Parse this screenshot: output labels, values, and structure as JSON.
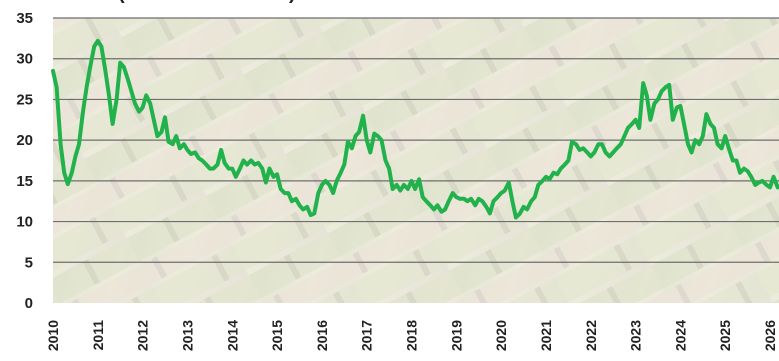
{
  "chart_data": {
    "type": "line",
    "title_fragment": "(",
    "title_fragment_2": ")",
    "ylim": [
      0,
      35
    ],
    "yticks": [
      "0",
      "5",
      "10",
      "15",
      "20",
      "25",
      "30",
      "35"
    ],
    "xticks": [
      "2010",
      "2011",
      "2012",
      "2013",
      "2014",
      "2015",
      "2016",
      "2017",
      "2018",
      "2019",
      "2020",
      "2021",
      "2022",
      "2023",
      "2024",
      "2025",
      "2026"
    ],
    "grid": true,
    "line_color": "#22b24c",
    "series": [
      {
        "points": [
          [
            2010.0,
            28.5
          ],
          [
            2010.08,
            26.5
          ],
          [
            2010.17,
            19.5
          ],
          [
            2010.25,
            16.0
          ],
          [
            2010.33,
            14.6
          ],
          [
            2010.42,
            16.0
          ],
          [
            2010.5,
            18.0
          ],
          [
            2010.58,
            19.5
          ],
          [
            2010.67,
            23.5
          ],
          [
            2010.75,
            26.5
          ],
          [
            2010.83,
            29.0
          ],
          [
            2010.92,
            31.5
          ],
          [
            2011.0,
            32.2
          ],
          [
            2011.08,
            31.5
          ],
          [
            2011.17,
            28.5
          ],
          [
            2011.25,
            25.5
          ],
          [
            2011.33,
            22.0
          ],
          [
            2011.42,
            25.0
          ],
          [
            2011.5,
            29.5
          ],
          [
            2011.58,
            29.0
          ],
          [
            2011.67,
            27.5
          ],
          [
            2011.75,
            26.0
          ],
          [
            2011.83,
            24.5
          ],
          [
            2011.92,
            23.5
          ],
          [
            2012.0,
            24.0
          ],
          [
            2012.08,
            25.5
          ],
          [
            2012.17,
            24.5
          ],
          [
            2012.25,
            22.5
          ],
          [
            2012.33,
            20.5
          ],
          [
            2012.42,
            21.0
          ],
          [
            2012.5,
            22.8
          ],
          [
            2012.58,
            19.8
          ],
          [
            2012.67,
            19.5
          ],
          [
            2012.75,
            20.5
          ],
          [
            2012.83,
            19.0
          ],
          [
            2012.92,
            19.5
          ],
          [
            2013.0,
            18.8
          ],
          [
            2013.08,
            18.3
          ],
          [
            2013.17,
            18.5
          ],
          [
            2013.25,
            17.8
          ],
          [
            2013.33,
            17.5
          ],
          [
            2013.42,
            17.0
          ],
          [
            2013.5,
            16.5
          ],
          [
            2013.58,
            16.5
          ],
          [
            2013.67,
            17.0
          ],
          [
            2013.75,
            18.8
          ],
          [
            2013.83,
            17.2
          ],
          [
            2013.92,
            16.5
          ],
          [
            2014.0,
            16.5
          ],
          [
            2014.08,
            15.5
          ],
          [
            2014.17,
            16.5
          ],
          [
            2014.25,
            17.5
          ],
          [
            2014.33,
            17.0
          ],
          [
            2014.42,
            17.5
          ],
          [
            2014.5,
            17.0
          ],
          [
            2014.58,
            17.2
          ],
          [
            2014.67,
            16.5
          ],
          [
            2014.75,
            14.8
          ],
          [
            2014.83,
            16.5
          ],
          [
            2014.92,
            15.5
          ],
          [
            2015.0,
            15.8
          ],
          [
            2015.08,
            14.0
          ],
          [
            2015.17,
            13.5
          ],
          [
            2015.25,
            13.5
          ],
          [
            2015.33,
            12.5
          ],
          [
            2015.42,
            12.8
          ],
          [
            2015.5,
            12.0
          ],
          [
            2015.58,
            11.5
          ],
          [
            2015.67,
            11.8
          ],
          [
            2015.75,
            10.8
          ],
          [
            2015.83,
            11.0
          ],
          [
            2015.92,
            13.5
          ],
          [
            2016.0,
            14.5
          ],
          [
            2016.08,
            15.0
          ],
          [
            2016.17,
            14.5
          ],
          [
            2016.25,
            13.5
          ],
          [
            2016.33,
            15.0
          ],
          [
            2016.42,
            16.0
          ],
          [
            2016.5,
            17.0
          ],
          [
            2016.58,
            19.8
          ],
          [
            2016.67,
            19.0
          ],
          [
            2016.75,
            20.5
          ],
          [
            2016.83,
            21.0
          ],
          [
            2016.92,
            23.0
          ],
          [
            2017.0,
            20.0
          ],
          [
            2017.08,
            18.5
          ],
          [
            2017.17,
            20.8
          ],
          [
            2017.25,
            20.5
          ],
          [
            2017.33,
            20.0
          ],
          [
            2017.42,
            17.5
          ],
          [
            2017.5,
            16.5
          ],
          [
            2017.58,
            14.0
          ],
          [
            2017.67,
            14.5
          ],
          [
            2017.75,
            13.8
          ],
          [
            2017.83,
            14.5
          ],
          [
            2017.92,
            14.0
          ],
          [
            2018.0,
            15.0
          ],
          [
            2018.08,
            14.0
          ],
          [
            2018.17,
            15.2
          ],
          [
            2018.25,
            13.0
          ],
          [
            2018.33,
            12.5
          ],
          [
            2018.42,
            12.0
          ],
          [
            2018.5,
            11.5
          ],
          [
            2018.58,
            12.0
          ],
          [
            2018.67,
            11.2
          ],
          [
            2018.75,
            11.5
          ],
          [
            2018.83,
            12.5
          ],
          [
            2018.92,
            13.5
          ],
          [
            2019.0,
            13.0
          ],
          [
            2019.08,
            12.8
          ],
          [
            2019.17,
            12.8
          ],
          [
            2019.25,
            12.5
          ],
          [
            2019.33,
            12.8
          ],
          [
            2019.42,
            12.0
          ],
          [
            2019.5,
            12.8
          ],
          [
            2019.58,
            12.5
          ],
          [
            2019.67,
            11.8
          ],
          [
            2019.75,
            11.0
          ],
          [
            2019.83,
            12.5
          ],
          [
            2019.92,
            13.0
          ],
          [
            2020.0,
            13.5
          ],
          [
            2020.08,
            13.8
          ],
          [
            2020.17,
            14.8
          ],
          [
            2020.25,
            12.5
          ],
          [
            2020.33,
            10.5
          ],
          [
            2020.42,
            11.0
          ],
          [
            2020.5,
            11.8
          ],
          [
            2020.58,
            11.5
          ],
          [
            2020.67,
            12.5
          ],
          [
            2020.75,
            13.0
          ],
          [
            2020.83,
            14.5
          ],
          [
            2020.92,
            15.0
          ],
          [
            2021.0,
            15.5
          ],
          [
            2021.08,
            15.2
          ],
          [
            2021.17,
            16.0
          ],
          [
            2021.25,
            15.8
          ],
          [
            2021.33,
            16.5
          ],
          [
            2021.42,
            17.0
          ],
          [
            2021.5,
            17.5
          ],
          [
            2021.58,
            19.8
          ],
          [
            2021.67,
            19.5
          ],
          [
            2021.75,
            18.8
          ],
          [
            2021.83,
            19.0
          ],
          [
            2021.92,
            18.5
          ],
          [
            2022.0,
            18.0
          ],
          [
            2022.08,
            18.5
          ],
          [
            2022.17,
            19.5
          ],
          [
            2022.25,
            19.5
          ],
          [
            2022.33,
            18.5
          ],
          [
            2022.42,
            18.0
          ],
          [
            2022.5,
            18.5
          ],
          [
            2022.58,
            19.0
          ],
          [
            2022.67,
            19.5
          ],
          [
            2022.75,
            20.5
          ],
          [
            2022.83,
            21.5
          ],
          [
            2022.92,
            22.0
          ],
          [
            2023.0,
            22.5
          ],
          [
            2023.08,
            21.5
          ],
          [
            2023.17,
            27.0
          ],
          [
            2023.25,
            25.5
          ],
          [
            2023.33,
            22.5
          ],
          [
            2023.42,
            24.5
          ],
          [
            2023.5,
            25.0
          ],
          [
            2023.58,
            26.0
          ],
          [
            2023.67,
            26.5
          ],
          [
            2023.75,
            26.8
          ],
          [
            2023.83,
            22.5
          ],
          [
            2023.92,
            24.0
          ],
          [
            2024.0,
            24.2
          ],
          [
            2024.08,
            22.0
          ],
          [
            2024.17,
            19.5
          ],
          [
            2024.25,
            18.5
          ],
          [
            2024.33,
            20.0
          ],
          [
            2024.42,
            19.5
          ],
          [
            2024.5,
            20.5
          ],
          [
            2024.58,
            23.2
          ],
          [
            2024.67,
            22.0
          ],
          [
            2024.75,
            21.5
          ],
          [
            2024.83,
            19.5
          ],
          [
            2024.92,
            19.0
          ],
          [
            2025.0,
            20.5
          ],
          [
            2025.08,
            19.0
          ],
          [
            2025.17,
            17.5
          ],
          [
            2025.25,
            17.5
          ],
          [
            2025.33,
            16.0
          ],
          [
            2025.42,
            16.5
          ],
          [
            2025.5,
            16.2
          ],
          [
            2025.58,
            15.5
          ],
          [
            2025.67,
            14.5
          ],
          [
            2025.75,
            14.8
          ],
          [
            2025.83,
            15.0
          ],
          [
            2025.92,
            14.5
          ],
          [
            2026.0,
            14.2
          ],
          [
            2026.08,
            15.5
          ],
          [
            2026.17,
            14.2
          ]
        ]
      }
    ]
  }
}
